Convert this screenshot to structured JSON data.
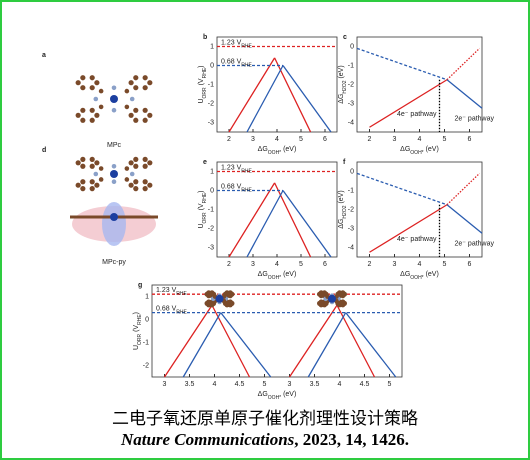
{
  "panels": [
    {
      "label": "a",
      "caption": "MPc"
    },
    {
      "label": "d",
      "caption": "MPc-py"
    }
  ],
  "plots": [
    {
      "label": "b",
      "kind": "volcano",
      "ylabel": [
        "U",
        "ORR",
        " (V",
        "RHE",
        ")"
      ],
      "xlabel": [
        "ΔG",
        "OOH*",
        " (eV)"
      ],
      "xticks": [
        "2",
        "3",
        "4",
        "5",
        "6"
      ],
      "yticks": [
        "1",
        "0",
        "-1",
        "-2",
        "-3"
      ],
      "hi": [
        "1.23 V",
        "RHE"
      ],
      "lo": [
        "0.68 V",
        "RHE"
      ]
    },
    {
      "label": "c",
      "kind": "limit",
      "ylabel": [
        "ΔG",
        "H2O2",
        " (eV)"
      ],
      "xlabel": [
        "ΔG",
        "OOH*",
        " (eV)"
      ],
      "xticks": [
        "2",
        "3",
        "4",
        "5",
        "6"
      ],
      "yticks": [
        "0",
        "-1",
        "-2",
        "-3",
        "-4"
      ],
      "hi": [
        "4e⁻ pathway",
        ""
      ],
      "lo": [
        "2e⁻ pathway",
        ""
      ]
    },
    {
      "label": "e",
      "kind": "volcano",
      "ylabel": [
        "U",
        "ORR",
        " (V",
        "RHE",
        ")"
      ],
      "xlabel": [
        "ΔG",
        "OOH*",
        " (eV)"
      ],
      "xticks": [
        "2",
        "3",
        "4",
        "5",
        "6"
      ],
      "yticks": [
        "1",
        "0",
        "-1",
        "-2",
        "-3"
      ],
      "hi": [
        "1.23 V",
        "RHE"
      ],
      "lo": [
        "0.68 V",
        "RHE"
      ]
    },
    {
      "label": "f",
      "kind": "limit",
      "ylabel": [
        "ΔG",
        "H2O2",
        " (eV)"
      ],
      "xlabel": [
        "ΔG",
        "OOH*",
        " (eV)"
      ],
      "xticks": [
        "2",
        "3",
        "4",
        "5",
        "6"
      ],
      "yticks": [
        "0",
        "-1",
        "-2",
        "-3",
        "-4"
      ],
      "hi": [
        "4e⁻ pathway",
        ""
      ],
      "lo": [
        "2e⁻ pathway",
        ""
      ]
    },
    {
      "label": "g",
      "kind": "double",
      "ylabel": [
        "U",
        "ORR",
        " (V",
        "RHE",
        ")"
      ],
      "xlabel": [
        "ΔG",
        "OOH*",
        " (eV)"
      ],
      "xticks": [
        "3",
        "3.5",
        "4",
        "4.5",
        "5",
        "3",
        "3.5",
        "4",
        "4.5",
        "5"
      ],
      "yticks": [
        "1",
        "0",
        "-1",
        "-2"
      ],
      "hi": [
        "1.23 V",
        "RHE"
      ],
      "lo": [
        "0.68 V",
        "RHE"
      ]
    }
  ],
  "caption": {
    "title": "二电子氧还原单原子催化剂理性设计策略",
    "journal": "Nature Communications",
    "rest": ", 2023, 14, 1426."
  }
}
